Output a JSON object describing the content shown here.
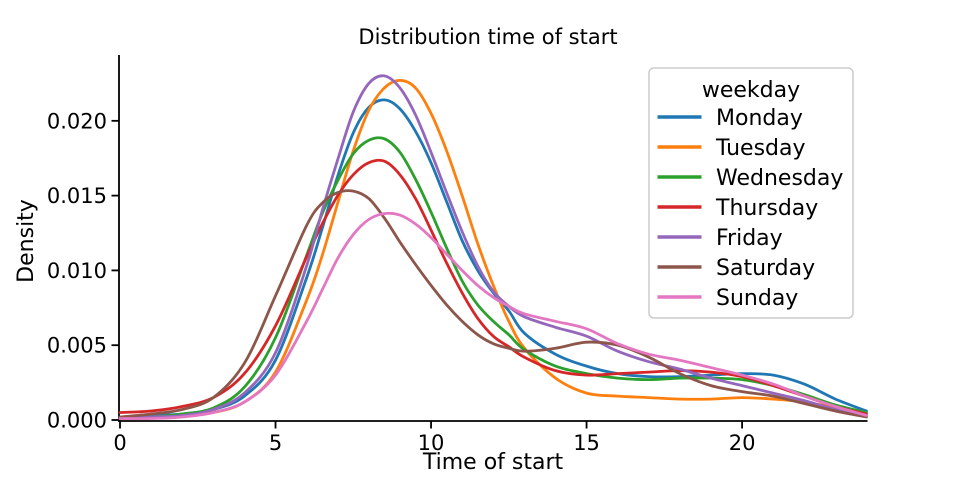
{
  "chart_data": {
    "type": "line",
    "subtype": "kde-density",
    "title": "Distribution time of start",
    "xlabel": "Time of start",
    "ylabel": "Density",
    "xlim": [
      0,
      24
    ],
    "ylim": [
      0,
      0.0244
    ],
    "grid": false,
    "xticks": [
      0,
      5,
      10,
      15,
      20
    ],
    "ytick_values": [
      0,
      0.005,
      0.01,
      0.015,
      0.02
    ],
    "ytick_labels": [
      "0.000",
      "0.005",
      "0.010",
      "0.015",
      "0.020"
    ],
    "legend": {
      "title": "weekday",
      "position": "upper right"
    },
    "axis_color": "#000000",
    "x": [
      0,
      1,
      2,
      3,
      4,
      5,
      6,
      6.5,
      7,
      7.5,
      8,
      8.5,
      9,
      9.5,
      10,
      10.5,
      11,
      11.5,
      12,
      12.5,
      13,
      14,
      15,
      16,
      17,
      18,
      19,
      20,
      21,
      22,
      23,
      24
    ],
    "series": [
      {
        "name": "Monday",
        "color": "#1f77b4",
        "values": [
          0.0002,
          0.0003,
          0.0004,
          0.0007,
          0.0016,
          0.004,
          0.0095,
          0.0128,
          0.0163,
          0.0192,
          0.0209,
          0.0214,
          0.0208,
          0.0193,
          0.0172,
          0.0146,
          0.012,
          0.01,
          0.0085,
          0.0073,
          0.0058,
          0.0044,
          0.0036,
          0.0031,
          0.0029,
          0.0029,
          0.003,
          0.0031,
          0.003,
          0.0024,
          0.0014,
          0.0006
        ]
      },
      {
        "name": "Tuesday",
        "color": "#ff7f0e",
        "values": [
          0.0001,
          0.0002,
          0.0003,
          0.0005,
          0.0012,
          0.0032,
          0.008,
          0.011,
          0.0145,
          0.018,
          0.0207,
          0.0222,
          0.0227,
          0.0222,
          0.0205,
          0.018,
          0.015,
          0.0118,
          0.009,
          0.0066,
          0.0048,
          0.0028,
          0.0018,
          0.0016,
          0.0015,
          0.0014,
          0.0014,
          0.0015,
          0.0014,
          0.0012,
          0.0008,
          0.0003
        ]
      },
      {
        "name": "Wednesday",
        "color": "#2ca02c",
        "values": [
          0.0001,
          0.0002,
          0.0004,
          0.0008,
          0.0022,
          0.0055,
          0.011,
          0.0138,
          0.016,
          0.0178,
          0.0187,
          0.0188,
          0.0179,
          0.0161,
          0.0139,
          0.0115,
          0.0093,
          0.0077,
          0.0066,
          0.0057,
          0.0047,
          0.0036,
          0.0031,
          0.0028,
          0.0027,
          0.0028,
          0.0028,
          0.0027,
          0.0023,
          0.0017,
          0.001,
          0.0005
        ]
      },
      {
        "name": "Thursday",
        "color": "#d62728",
        "values": [
          0.0005,
          0.0006,
          0.0009,
          0.0015,
          0.0031,
          0.0063,
          0.0109,
          0.0131,
          0.015,
          0.0164,
          0.0172,
          0.0173,
          0.0164,
          0.0148,
          0.0127,
          0.0105,
          0.0085,
          0.0068,
          0.0056,
          0.0049,
          0.0042,
          0.0033,
          0.003,
          0.0031,
          0.0032,
          0.0033,
          0.0032,
          0.0029,
          0.0023,
          0.0016,
          0.0009,
          0.0004
        ]
      },
      {
        "name": "Friday",
        "color": "#9467bd",
        "values": [
          0.0001,
          0.0002,
          0.0003,
          0.0007,
          0.0018,
          0.0045,
          0.0103,
          0.014,
          0.0174,
          0.0206,
          0.0225,
          0.023,
          0.0222,
          0.0204,
          0.0179,
          0.0152,
          0.0126,
          0.0103,
          0.0086,
          0.0076,
          0.0069,
          0.0062,
          0.0056,
          0.0046,
          0.0039,
          0.0034,
          0.0028,
          0.0023,
          0.0018,
          0.0013,
          0.0007,
          0.0003
        ]
      },
      {
        "name": "Saturday",
        "color": "#8c564b",
        "values": [
          0.0002,
          0.0004,
          0.0007,
          0.0015,
          0.0038,
          0.0083,
          0.013,
          0.0145,
          0.0152,
          0.0153,
          0.0148,
          0.0135,
          0.0119,
          0.0104,
          0.009,
          0.0077,
          0.0066,
          0.0057,
          0.0051,
          0.0048,
          0.0046,
          0.0048,
          0.0052,
          0.005,
          0.0042,
          0.0031,
          0.0023,
          0.0019,
          0.0016,
          0.0011,
          0.0006,
          0.0002
        ]
      },
      {
        "name": "Sunday",
        "color": "#e377c2",
        "values": [
          0.0001,
          0.0001,
          0.0002,
          0.0005,
          0.0012,
          0.003,
          0.0066,
          0.0087,
          0.0108,
          0.0124,
          0.0134,
          0.0138,
          0.0137,
          0.0131,
          0.0122,
          0.0111,
          0.01,
          0.009,
          0.0082,
          0.0076,
          0.0071,
          0.0066,
          0.0061,
          0.0051,
          0.0044,
          0.004,
          0.0035,
          0.003,
          0.0024,
          0.0016,
          0.0009,
          0.0003
        ]
      }
    ]
  }
}
